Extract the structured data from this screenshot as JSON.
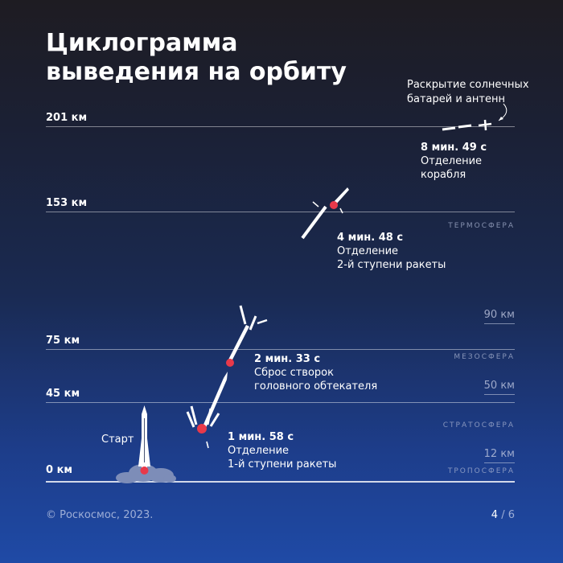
{
  "title": {
    "line1": "Циклограмма",
    "line2": "выведения на орбиту"
  },
  "altitudes": [
    {
      "label": "201 км"
    },
    {
      "label": "153 км"
    },
    {
      "label": "75 км"
    },
    {
      "label": "45 км"
    },
    {
      "label": "0 км"
    }
  ],
  "layers": {
    "thermosphere": "ТЕРМОСФЕРА",
    "mesosphere": "МЕЗОСФЕРА",
    "stratosphere": "СТРАТОСФЕРА",
    "troposphere": "ТРОПОСФЕРА"
  },
  "boundaries": {
    "b90": "90 км",
    "b50": "50 км",
    "b12": "12 км"
  },
  "start": "Старт",
  "events": [
    {
      "time": "1 мин. 58 с",
      "desc": "Отделение\n1-й ступени ракеты"
    },
    {
      "time": "2 мин. 33 с",
      "desc": "Сброс створок\nголовного обтекателя"
    },
    {
      "time": "4 мин. 48 с",
      "desc": "Отделение\n2-й ступени ракеты"
    },
    {
      "time": "8 мин. 49 с",
      "desc": "Отделение\nкорабля"
    }
  ],
  "deploy": "Раскрытие солнечных\nбатарей и антенн",
  "footer": {
    "copyright": "© Роскосмос, 2023.",
    "page_current": "4",
    "page_sep": " / ",
    "page_total": "6"
  },
  "colors": {
    "flame": "#e8394a",
    "rocket": "#ffffff",
    "cloud": "#7d8db8"
  }
}
